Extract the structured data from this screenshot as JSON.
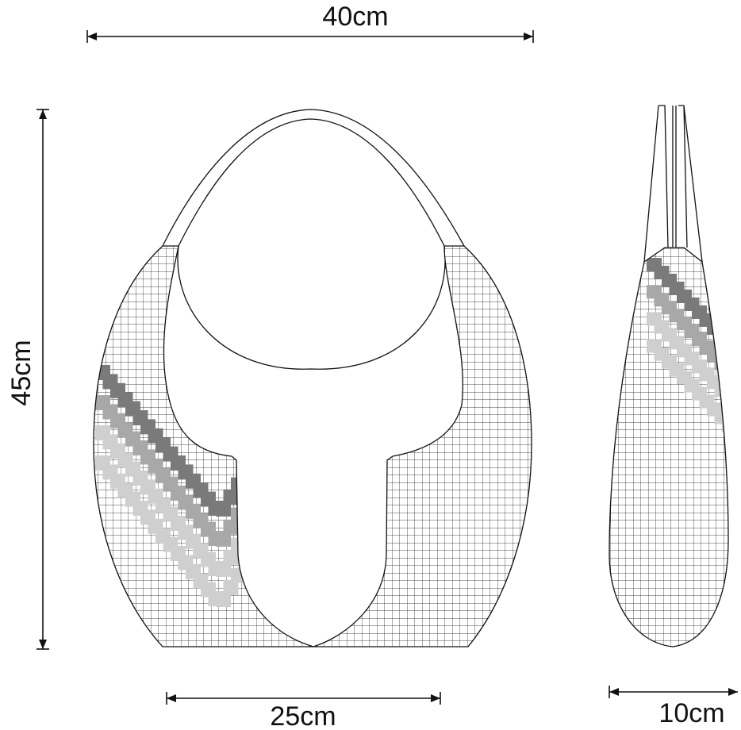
{
  "dimensions": {
    "width_top": "40cm",
    "height": "45cm",
    "base_width": "25cm",
    "side_width": "10cm"
  },
  "colors": {
    "line": "#111111",
    "stripe_dark": "#7a7a7a",
    "stripe_mid": "#a8a8a8",
    "stripe_light": "#cfcfcf",
    "background": "#ffffff"
  }
}
